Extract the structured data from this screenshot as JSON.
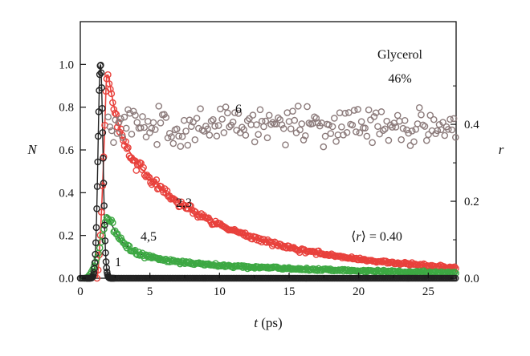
{
  "chart_data": {
    "type": "scatter",
    "title": "",
    "xlabel_var": "t",
    "xlabel_unit": " (ps)",
    "ylabel_left": "N",
    "ylabel_right": "r",
    "xlim": [
      0,
      27
    ],
    "ylim_left": [
      0,
      1.2
    ],
    "ylim_right": [
      0,
      0.667
    ],
    "x_ticks": [
      "0",
      "5",
      "10",
      "15",
      "20",
      "25"
    ],
    "y_ticks_left": [
      "0.0",
      "0.2",
      "0.4",
      "0.6",
      "0.8",
      "1.0"
    ],
    "y_ticks_right": [
      "0.0",
      "0.2",
      "0.4"
    ],
    "grid": false,
    "annotations": {
      "solvent": "Glycerol",
      "concentration": "46%",
      "label_6": "6",
      "label_23": "2,3",
      "label_45": "4,5",
      "label_1": "1",
      "mean_r": "⟨r⟩ = 0.40",
      "mean_r_prefix": "⟨",
      "mean_r_var": "r",
      "mean_r_suffix": "⟩ = 0.40"
    },
    "series": [
      {
        "label": "2,3",
        "axis": "left",
        "color": "#e8413c",
        "description": "red circles with red fit",
        "rise_start": 1.2,
        "peak": {
          "x": 1.9,
          "y": 1.0
        },
        "decay": [
          {
            "x": 2.0,
            "y": 0.95
          },
          {
            "x": 2.5,
            "y": 0.78
          },
          {
            "x": 3.0,
            "y": 0.66
          },
          {
            "x": 4.0,
            "y": 0.54
          },
          {
            "x": 5.0,
            "y": 0.47
          },
          {
            "x": 6.0,
            "y": 0.41
          },
          {
            "x": 7.0,
            "y": 0.36
          },
          {
            "x": 8.0,
            "y": 0.32
          },
          {
            "x": 10.0,
            "y": 0.25
          },
          {
            "x": 12.0,
            "y": 0.2
          },
          {
            "x": 14.0,
            "y": 0.16
          },
          {
            "x": 16.0,
            "y": 0.13
          },
          {
            "x": 18.0,
            "y": 0.11
          },
          {
            "x": 20.0,
            "y": 0.09
          },
          {
            "x": 22.0,
            "y": 0.075
          },
          {
            "x": 24.0,
            "y": 0.065
          },
          {
            "x": 27.0,
            "y": 0.05
          }
        ]
      },
      {
        "label": "4,5",
        "axis": "left",
        "color": "#3da843",
        "description": "green circles with dark fit",
        "rise_start": 0.3,
        "peak": {
          "x": 1.9,
          "y": 0.3
        },
        "decay": [
          {
            "x": 2.0,
            "y": 0.29
          },
          {
            "x": 2.5,
            "y": 0.22
          },
          {
            "x": 3.0,
            "y": 0.17
          },
          {
            "x": 4.0,
            "y": 0.12
          },
          {
            "x": 5.0,
            "y": 0.1
          },
          {
            "x": 6.0,
            "y": 0.085
          },
          {
            "x": 8.0,
            "y": 0.07
          },
          {
            "x": 10.0,
            "y": 0.06
          },
          {
            "x": 15.0,
            "y": 0.045
          },
          {
            "x": 20.0,
            "y": 0.035
          },
          {
            "x": 27.0,
            "y": 0.025
          }
        ]
      },
      {
        "label": "1",
        "axis": "left",
        "color": "#222222",
        "description": "black circles: instrument response",
        "peak": {
          "x": 1.45,
          "y": 1.0
        },
        "width": 0.25,
        "baseline": 0.0
      },
      {
        "label": "6",
        "axis": "right",
        "color": "#8c7b7b",
        "description": "grey circles: anisotropy r(t)",
        "x_range": [
          2.0,
          27.0
        ],
        "mean": 0.4,
        "spread": 0.035
      }
    ]
  }
}
